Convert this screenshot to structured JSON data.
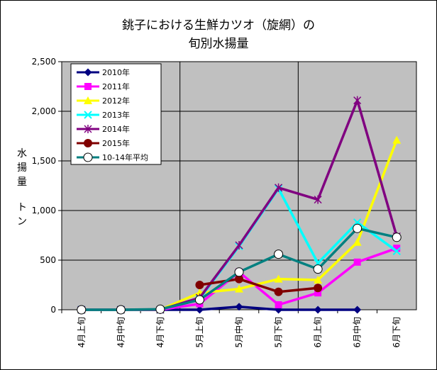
{
  "chart_data": {
    "type": "line",
    "title_lines": [
      "銚子における生鮮カツオ（旋網）の",
      "旬別水揚量"
    ],
    "ylabel_chars": [
      "水",
      "揚",
      "量",
      "",
      "ト",
      "ン"
    ],
    "ylim": [
      0,
      2500
    ],
    "yticks": [
      "0",
      "500",
      "1,000",
      "1,500",
      "2,000",
      "2,500"
    ],
    "categories": [
      "4月上旬",
      "4月中旬",
      "4月下旬",
      "5月上旬",
      "5月中旬",
      "5月下旬",
      "6月上旬",
      "6月中旬",
      "6月下旬"
    ],
    "grid": true,
    "legend_position": "top-left",
    "series": [
      {
        "name": "2010年",
        "color": "#000080",
        "marker": "diamond",
        "values": [
          0,
          0,
          0,
          0,
          30,
          0,
          0,
          0,
          null
        ]
      },
      {
        "name": "2011年",
        "color": "#FF00FF",
        "marker": "square",
        "values": [
          0,
          0,
          0,
          60,
          380,
          50,
          170,
          480,
          620
        ]
      },
      {
        "name": "2012年",
        "color": "#FFFF00",
        "marker": "triangle",
        "values": [
          0,
          0,
          0,
          170,
          210,
          310,
          300,
          680,
          1710
        ]
      },
      {
        "name": "2013年",
        "color": "#00FFFF",
        "marker": "x",
        "values": [
          0,
          0,
          0,
          110,
          640,
          1220,
          470,
          880,
          590
        ]
      },
      {
        "name": "2014年",
        "color": "#800080",
        "marker": "star",
        "values": [
          0,
          0,
          0,
          120,
          650,
          1230,
          1110,
          2110,
          740
        ]
      },
      {
        "name": "2015年",
        "color": "#800000",
        "marker": "circle",
        "values": [
          null,
          null,
          null,
          250,
          310,
          180,
          220,
          null,
          null
        ]
      },
      {
        "name": "10-14年平均",
        "color": "#008080",
        "marker": "open-circle",
        "values": [
          0,
          0,
          5,
          100,
          380,
          560,
          410,
          820,
          730
        ]
      }
    ]
  }
}
